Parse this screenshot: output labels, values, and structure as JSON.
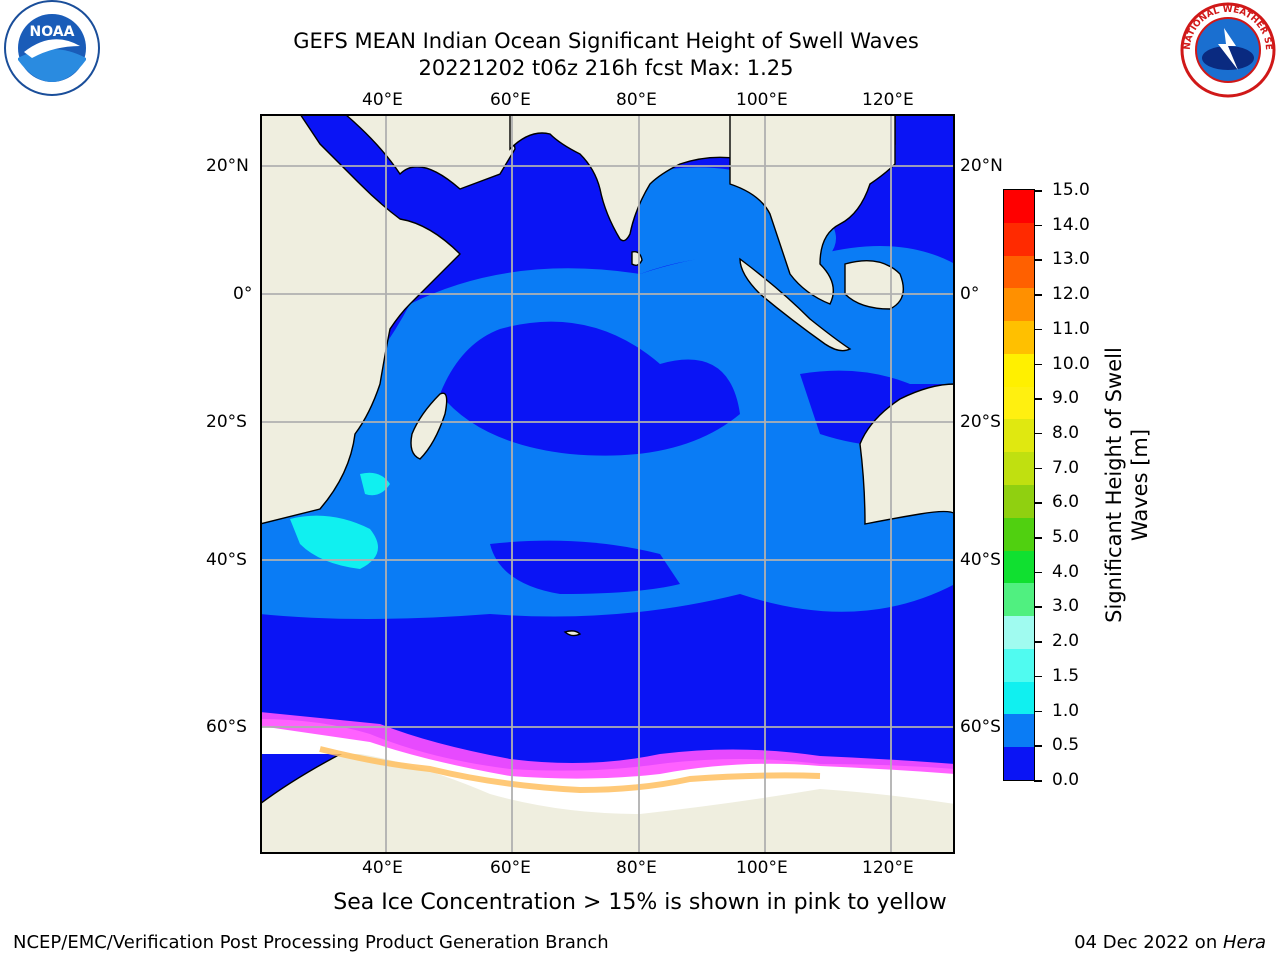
{
  "title": {
    "line1": "GEFS MEAN Indian Ocean Significant Height of Swell Waves",
    "line2": "20221202 t06z 216h fcst   Max: 1.25"
  },
  "map": {
    "lon_labels": [
      "40°E",
      "60°E",
      "80°E",
      "100°E",
      "120°E"
    ],
    "lat_labels": [
      "20°N",
      "0°",
      "20°S",
      "40°S",
      "60°S"
    ],
    "colors": {
      "land": "#efeedf",
      "ocean_low": "#0a14f5",
      "ocean_mid": "#0a7cf5",
      "ocean_high": "#10fdf0",
      "ice": "#ffffff",
      "grid": "#b0b0b0"
    }
  },
  "colorbar": {
    "label_line1": "Significant Height of Swell",
    "label_line2": "Waves [m]",
    "ticks": [
      "15.0",
      "14.0",
      "13.0",
      "12.0",
      "11.0",
      "10.0",
      "9.0",
      "8.0",
      "7.0",
      "6.0",
      "5.0",
      "4.0",
      "3.0",
      "2.0",
      "1.5",
      "1.0",
      "0.5",
      "0.0"
    ],
    "colors_bottom_to_top": [
      "#0a14f5",
      "#0a7cf5",
      "#10f0f0",
      "#50fbf0",
      "#a0fbf0",
      "#50f080",
      "#10e030",
      "#50d010",
      "#90d010",
      "#c0e010",
      "#e0e810",
      "#fff010",
      "#fff000",
      "#ffc000",
      "#ff9000",
      "#ff6000",
      "#ff2a00",
      "#ff0000"
    ]
  },
  "note": "Sea Ice Concentration > 15% is shown in pink to yellow",
  "footer": {
    "left": "NCEP/EMC/Verification Post Processing Product Generation Branch",
    "date": "04 Dec 2022 on ",
    "machine": "Hera"
  },
  "logos": {
    "noaa": "NOAA",
    "nws": "NATIONAL WEATHER SERVICE"
  }
}
